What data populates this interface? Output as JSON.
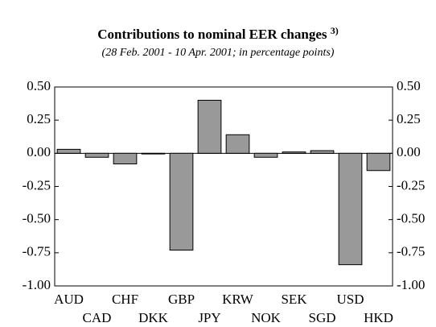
{
  "chart_data": {
    "type": "bar",
    "title": "Contributions to nominal EER changes",
    "title_note": "3)",
    "subtitle": "(28 Feb. 2001 - 10 Apr. 2001; in percentage points)",
    "categories": [
      "AUD",
      "CAD",
      "CHF",
      "DKK",
      "GBP",
      "JPY",
      "KRW",
      "NOK",
      "SEK",
      "SGD",
      "USD",
      "HKD"
    ],
    "values": [
      0.03,
      -0.03,
      -0.08,
      -0.005,
      -0.73,
      0.4,
      0.14,
      -0.03,
      0.01,
      0.02,
      -0.84,
      -0.13
    ],
    "color": "#999999",
    "ylim": [
      -1.0,
      0.5
    ],
    "yticks": [
      {
        "value": 0.5,
        "label": "0.50"
      },
      {
        "value": 0.25,
        "label": "0.25"
      },
      {
        "value": 0,
        "label": "0.00"
      },
      {
        "value": -0.25,
        "label": "-0.25"
      },
      {
        "value": -0.5,
        "label": "-0.50"
      },
      {
        "value": -0.75,
        "label": "-0.75"
      },
      {
        "value": -1.0,
        "label": "-1.00"
      }
    ],
    "y2lim": [
      -1.0,
      0.5
    ],
    "y2ticks": [
      {
        "value": 0.5,
        "label": "0.50"
      },
      {
        "value": 0.25,
        "label": "0.25"
      },
      {
        "value": 0,
        "label": "0.00"
      },
      {
        "value": -0.25,
        "label": "-0.25"
      },
      {
        "value": -0.5,
        "label": "-0.50"
      },
      {
        "value": -0.75,
        "label": "-0.75"
      },
      {
        "value": -1.0,
        "label": "-1.00"
      }
    ]
  }
}
